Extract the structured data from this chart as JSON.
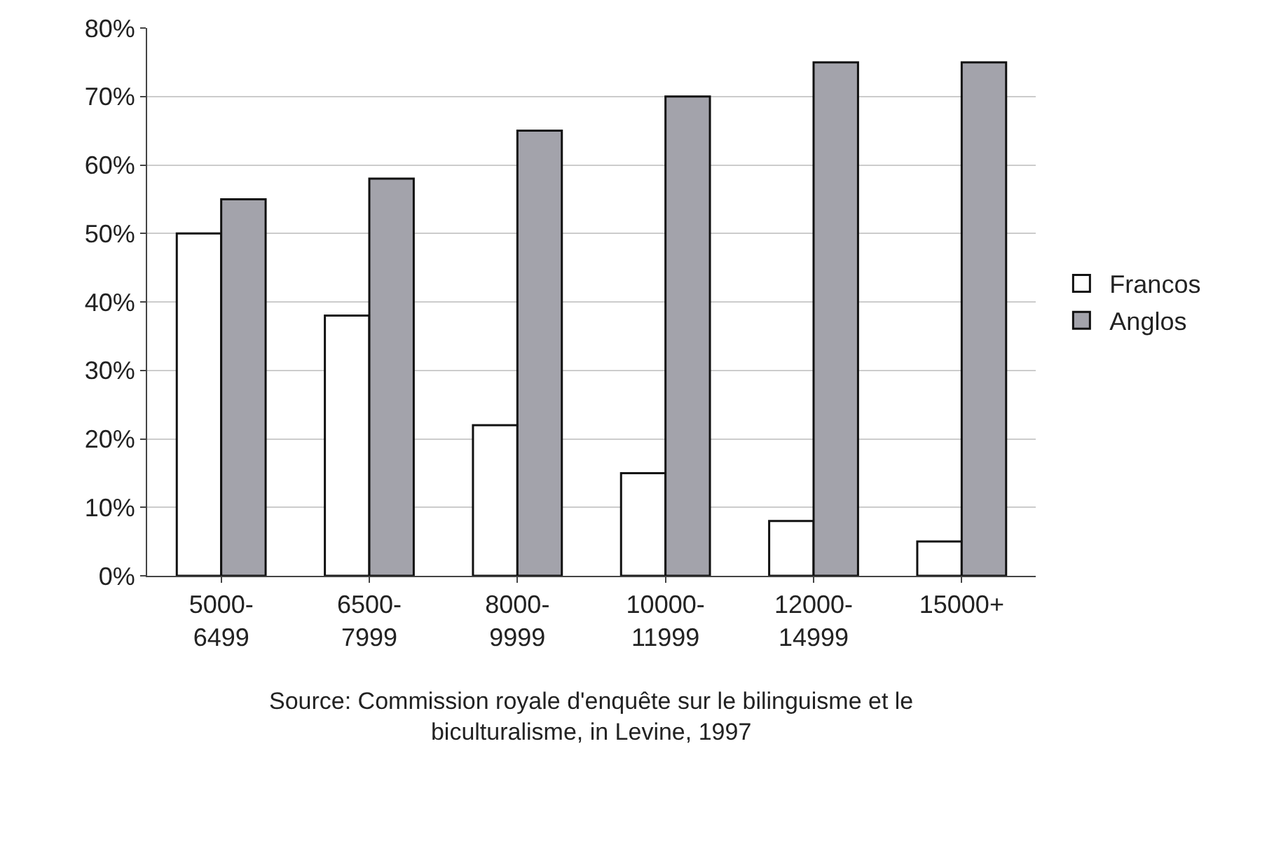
{
  "chart_data": {
    "type": "bar",
    "categories": [
      "5000-6499",
      "6500-7999",
      "8000-9999",
      "10000-11999",
      "12000-14999",
      "15000+"
    ],
    "series": [
      {
        "name": "Francos",
        "color": "#ffffff",
        "values": [
          50,
          38,
          22,
          15,
          8,
          5
        ]
      },
      {
        "name": "Anglos",
        "color": "#a3a3ab",
        "values": [
          55,
          58,
          65,
          70,
          75,
          75
        ]
      }
    ],
    "ylim": [
      0,
      80
    ],
    "yticks": [
      {
        "value": 0,
        "label": "0%"
      },
      {
        "value": 10,
        "label": "10%"
      },
      {
        "value": 20,
        "label": "20%"
      },
      {
        "value": 30,
        "label": "30%"
      },
      {
        "value": 40,
        "label": "40%"
      },
      {
        "value": 50,
        "label": "50%"
      },
      {
        "value": 60,
        "label": "60%"
      },
      {
        "value": 70,
        "label": "70%"
      },
      {
        "value": 80,
        "label": "80%"
      }
    ],
    "grid": "y",
    "legend": "right",
    "annotations": [
      "Source: Commission royale d'enquête sur le bilinguisme et le biculturalisme, in Levine, 1997"
    ]
  }
}
